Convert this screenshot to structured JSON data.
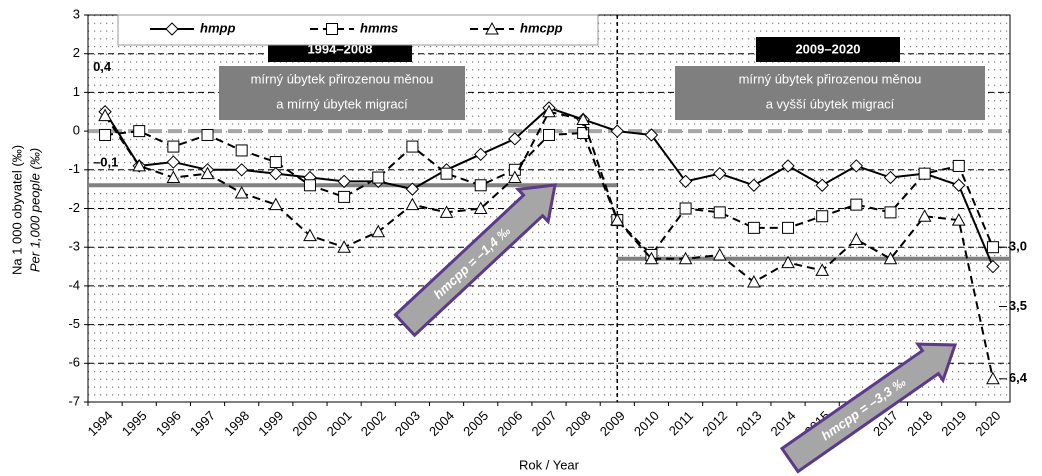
{
  "chart_data": {
    "type": "line",
    "categories": [
      "1994",
      "1995",
      "1996",
      "1997",
      "1998",
      "1999",
      "2000",
      "2001",
      "2002",
      "2003",
      "2004",
      "2005",
      "2006",
      "2007",
      "2008",
      "2009",
      "2010",
      "2011",
      "2012",
      "2013",
      "2014",
      "2015",
      "2016",
      "2017",
      "2018",
      "2019",
      "2020"
    ],
    "series": [
      {
        "name": "hmpp",
        "color": "#000000",
        "marker": "diamond",
        "line_style": "solid",
        "values": [
          0.5,
          -0.9,
          -0.8,
          -1.0,
          -1.0,
          -1.1,
          -1.2,
          -1.3,
          -1.3,
          -1.5,
          -1.0,
          -0.6,
          -0.2,
          0.6,
          0.3,
          0.0,
          -0.1,
          -1.3,
          -1.1,
          -1.4,
          -0.9,
          -1.4,
          -0.9,
          -1.2,
          -1.1,
          -1.4,
          -3.5
        ],
        "value_labels": [
          null,
          null,
          null,
          null,
          null,
          null,
          null,
          null,
          null,
          null,
          null,
          null,
          null,
          null,
          null,
          null,
          null,
          null,
          null,
          null,
          null,
          null,
          null,
          null,
          null,
          null,
          "3,5"
        ]
      },
      {
        "name": "hmms",
        "color": "#000000",
        "marker": "square",
        "line_style": "dashed",
        "values": [
          -0.1,
          0.0,
          -0.4,
          -0.1,
          -0.5,
          -0.8,
          -1.4,
          -1.7,
          -1.2,
          -0.4,
          -1.1,
          -1.4,
          -1.0,
          -0.1,
          -0.05,
          -2.3,
          -3.2,
          -2.0,
          -2.1,
          -2.5,
          -2.5,
          -2.2,
          -1.9,
          -2.1,
          -1.1,
          -0.9,
          -3.0
        ],
        "value_labels": [
          "–0,1",
          null,
          null,
          null,
          null,
          null,
          null,
          null,
          null,
          null,
          null,
          null,
          null,
          null,
          null,
          null,
          null,
          null,
          null,
          null,
          null,
          null,
          null,
          null,
          null,
          null,
          "3,0"
        ]
      },
      {
        "name": "hmcpp",
        "color": "#000000",
        "marker": "triangle",
        "line_style": "dashed",
        "values": [
          0.4,
          -0.9,
          -1.2,
          -1.1,
          -1.6,
          -1.9,
          -2.7,
          -3.0,
          -2.6,
          -1.9,
          -2.1,
          -2.0,
          -1.2,
          0.5,
          0.3,
          -2.3,
          -3.3,
          -3.3,
          -3.2,
          -3.9,
          -3.4,
          -3.6,
          -2.8,
          -3.3,
          -2.2,
          -2.3,
          -6.4
        ],
        "value_labels": [
          "0,4",
          null,
          null,
          null,
          null,
          null,
          null,
          null,
          null,
          null,
          null,
          null,
          null,
          null,
          null,
          null,
          null,
          null,
          null,
          null,
          null,
          null,
          null,
          null,
          null,
          null,
          "6,4"
        ]
      }
    ],
    "ylim": [
      -7,
      3
    ],
    "yticks": [
      -7,
      -6,
      -5,
      -4,
      -3,
      -2,
      -1,
      0,
      1,
      2,
      3
    ],
    "grid": true,
    "ylabel": "Na 1 000 obyvatel (‰)",
    "ylabel2": "Per 1,000 people (‰)",
    "xlabel": "Rok / Year",
    "periods": [
      {
        "label": "1994–2008",
        "text": [
          "mírný úbytek přirozenou měnou",
          "a mírný úbytek migrací"
        ],
        "mean": -1.4,
        "mean_label": "hmcpp = –1,4 ‰"
      },
      {
        "label": "2009–2020",
        "text": [
          "mírný úbytek přirozenou měnou",
          "a vyšší úbytek migrací"
        ],
        "mean": -3.3,
        "mean_label": "hmcpp = –3,3 ‰"
      }
    ]
  }
}
